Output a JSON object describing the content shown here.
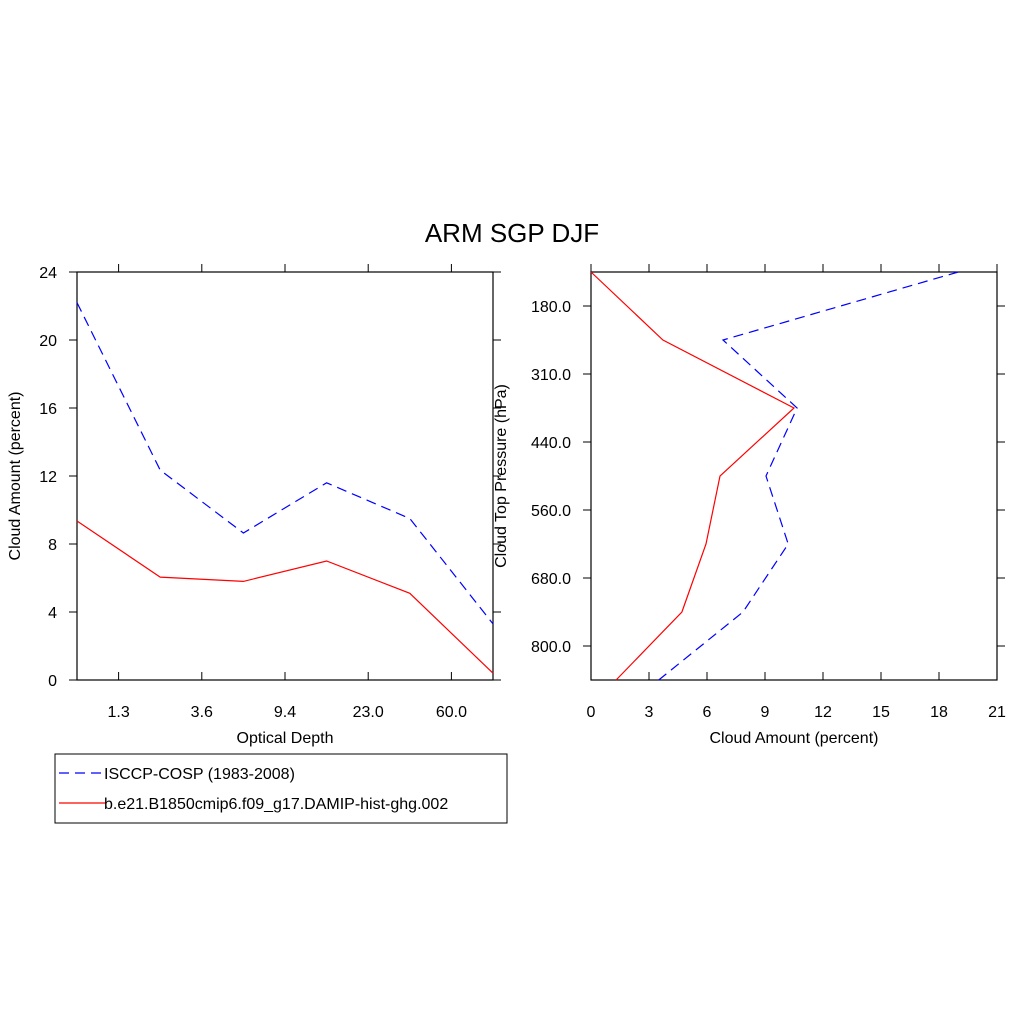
{
  "chart_data": [
    {
      "type": "line",
      "title": "ARM SGP DJF",
      "x_label": "Optical Depth",
      "y_label": "Cloud Amount (percent)",
      "x": [
        0,
        1,
        2,
        3,
        4,
        5
      ],
      "xlim": [
        0,
        5
      ],
      "xticks": [
        {
          "value": 0.5,
          "label": "1.3"
        },
        {
          "value": 1.5,
          "label": "3.6"
        },
        {
          "value": 2.5,
          "label": "9.4"
        },
        {
          "value": 3.5,
          "label": "23.0"
        },
        {
          "value": 4.5,
          "label": "60.0"
        }
      ],
      "ylim": [
        0,
        24
      ],
      "yticks": [
        0,
        4,
        8,
        12,
        16,
        20,
        24
      ],
      "series": [
        {
          "name": "ISCCP-COSP (1983-2008)",
          "color": "#0000ff",
          "dash": true,
          "values": [
            22.2,
            12.35,
            8.65,
            11.6,
            9.5,
            3.3
          ]
        },
        {
          "name": "b.e21.B1850cmip6.f09_g17.DAMIP-hist-ghg.002",
          "color": "#ff0000",
          "dash": false,
          "values": [
            9.35,
            6.05,
            5.8,
            7.0,
            5.1,
            0.4
          ]
        }
      ]
    },
    {
      "type": "line",
      "orientation": "horizontal",
      "x_label": "Cloud Amount (percent)",
      "y_label": "Cloud Top Pressure (hPa)",
      "y": [
        0,
        1,
        2,
        3,
        4,
        5,
        6
      ],
      "ylim": [
        6,
        0
      ],
      "yticks": [
        {
          "value": 0.5,
          "label": "180.0"
        },
        {
          "value": 1.5,
          "label": "310.0"
        },
        {
          "value": 2.5,
          "label": "440.0"
        },
        {
          "value": 3.5,
          "label": "560.0"
        },
        {
          "value": 4.5,
          "label": "680.0"
        },
        {
          "value": 5.5,
          "label": "800.0"
        }
      ],
      "xlim": [
        0,
        21
      ],
      "xticks": [
        0,
        3,
        6,
        9,
        12,
        15,
        18,
        21
      ],
      "series": [
        {
          "color": "#0000ff",
          "dash": true,
          "values": [
            19.0,
            6.83,
            10.66,
            9.05,
            10.2,
            7.86,
            3.5
          ]
        },
        {
          "color": "#ff0000",
          "dash": false,
          "values": [
            0,
            3.72,
            10.5,
            6.67,
            5.95,
            4.7,
            1.3
          ]
        }
      ]
    }
  ]
}
